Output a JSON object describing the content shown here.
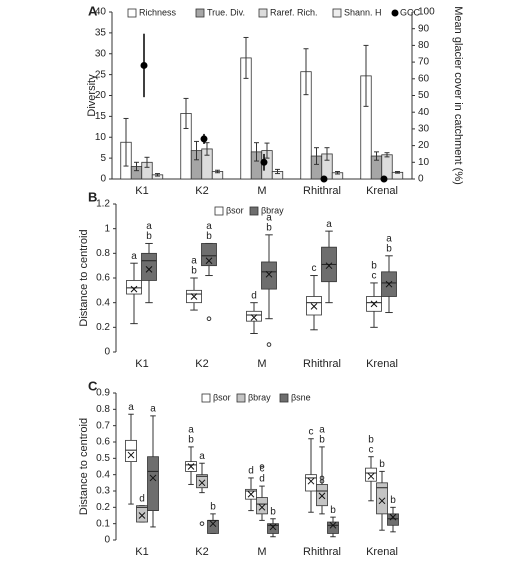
{
  "chart_data": [
    {
      "type": "bar",
      "panel": "A",
      "ylabel": "Diversity",
      "y2label": "Mean glacier cover in catchment (%)",
      "categories": [
        "K1",
        "K2",
        "M",
        "Rhithral",
        "Krenal"
      ],
      "ylim": [
        0,
        40
      ],
      "yticks": [
        0,
        5,
        10,
        15,
        20,
        25,
        30,
        35,
        40
      ],
      "y2lim": [
        0,
        100
      ],
      "y2ticks": [
        0,
        10,
        20,
        30,
        40,
        50,
        60,
        70,
        80,
        90,
        100
      ],
      "series": [
        {
          "name": "Richness",
          "color": "#ffffff",
          "values": [
            8.8,
            15.7,
            29,
            25.7,
            24.7
          ],
          "errors": [
            5.7,
            3.6,
            4.9,
            5.5,
            7.3
          ]
        },
        {
          "name": "True. Div.",
          "color": "#a6a6a6",
          "values": [
            3,
            6.8,
            6.5,
            5.5,
            5.5
          ],
          "errors": [
            1,
            2.2,
            2.2,
            2,
            1
          ]
        },
        {
          "name": "Raref. Rich.",
          "color": "#dcdcdc",
          "values": [
            4,
            7.2,
            6.8,
            6,
            5.8
          ],
          "errors": [
            1.2,
            1.5,
            1.8,
            1.5,
            0.5
          ]
        },
        {
          "name": "Shann. H",
          "color": "#eeeeee",
          "values": [
            1,
            1.8,
            1.8,
            1.5,
            1.6
          ],
          "errors": [
            0.3,
            0.3,
            0.5,
            0.3,
            0.2
          ]
        },
        {
          "name": "GCC",
          "color": "#000000",
          "axis": "y2",
          "values": [
            68,
            24,
            10,
            0,
            0
          ],
          "errors": [
            19,
            3,
            5,
            0,
            0
          ]
        }
      ]
    },
    {
      "type": "box",
      "panel": "B",
      "ylabel": "Distance to centroid",
      "categories": [
        "K1",
        "K2",
        "M",
        "Rhithral",
        "Krenal"
      ],
      "ylim": [
        0,
        1.2
      ],
      "yticks": [
        0,
        0.2,
        0.4,
        0.6,
        0.8,
        1,
        1.2
      ],
      "series": [
        {
          "name": "βsor",
          "color": "#ffffff",
          "boxes": [
            {
              "min": 0.23,
              "q1": 0.47,
              "median": 0.52,
              "q3": 0.58,
              "max": 0.72,
              "mean": 0.51,
              "outliers": [],
              "letters": [
                "a"
              ]
            },
            {
              "min": 0.34,
              "q1": 0.4,
              "median": 0.47,
              "q3": 0.5,
              "max": 0.6,
              "mean": 0.45,
              "outliers": [],
              "letters": [
                "a",
                "b"
              ]
            },
            {
              "min": 0.15,
              "q1": 0.25,
              "median": 0.3,
              "q3": 0.33,
              "max": 0.4,
              "mean": 0.28,
              "outliers": [],
              "letters": [
                "d"
              ]
            },
            {
              "min": 0.18,
              "q1": 0.3,
              "median": 0.4,
              "q3": 0.45,
              "max": 0.62,
              "mean": 0.37,
              "outliers": [],
              "letters": [
                "c"
              ]
            },
            {
              "min": 0.2,
              "q1": 0.33,
              "median": 0.4,
              "q3": 0.45,
              "max": 0.56,
              "mean": 0.39,
              "outliers": [],
              "letters": [
                "b",
                "c"
              ]
            }
          ]
        },
        {
          "name": "βbray",
          "color": "#6e6e6e",
          "boxes": [
            {
              "min": 0.4,
              "q1": 0.58,
              "median": 0.74,
              "q3": 0.8,
              "max": 0.88,
              "mean": 0.67,
              "outliers": [],
              "letters": [
                "a",
                "b"
              ]
            },
            {
              "min": 0.62,
              "q1": 0.7,
              "median": 0.78,
              "q3": 0.88,
              "max": 0.88,
              "mean": 0.74,
              "outliers": [
                0.27
              ],
              "letters": [
                "a",
                "b"
              ]
            },
            {
              "min": 0.27,
              "q1": 0.51,
              "median": 0.65,
              "q3": 0.73,
              "max": 0.95,
              "mean": 0.63,
              "outliers": [
                0.06
              ],
              "letters": [
                "a",
                "b"
              ]
            },
            {
              "min": 0.4,
              "q1": 0.57,
              "median": 0.71,
              "q3": 0.85,
              "max": 0.98,
              "mean": 0.7,
              "outliers": [],
              "letters": [
                "a"
              ]
            },
            {
              "min": 0.32,
              "q1": 0.45,
              "median": 0.56,
              "q3": 0.65,
              "max": 0.78,
              "mean": 0.55,
              "outliers": [],
              "letters": [
                "a",
                "b"
              ]
            }
          ]
        }
      ]
    },
    {
      "type": "box",
      "panel": "C",
      "ylabel": "Distance to centroid",
      "categories": [
        "K1",
        "K2",
        "M",
        "Rhithral",
        "Krenal"
      ],
      "ylim": [
        0,
        0.9
      ],
      "yticks": [
        0,
        0.1,
        0.2,
        0.3,
        0.4,
        0.5,
        0.6,
        0.7,
        0.8,
        0.9
      ],
      "series": [
        {
          "name": "βsor",
          "color": "#ffffff",
          "boxes": [
            {
              "min": 0.22,
              "q1": 0.48,
              "median": 0.55,
              "q3": 0.61,
              "max": 0.77,
              "mean": 0.52,
              "outliers": [],
              "letters": [
                "a"
              ]
            },
            {
              "min": 0.34,
              "q1": 0.42,
              "median": 0.46,
              "q3": 0.48,
              "max": 0.57,
              "mean": 0.45,
              "outliers": [],
              "letters": [
                "a",
                "b"
              ]
            },
            {
              "min": 0.18,
              "q1": 0.25,
              "median": 0.3,
              "q3": 0.31,
              "max": 0.38,
              "mean": 0.28,
              "outliers": [],
              "letters": [
                "d"
              ]
            },
            {
              "min": 0.17,
              "q1": 0.3,
              "median": 0.38,
              "q3": 0.4,
              "max": 0.62,
              "mean": 0.36,
              "outliers": [],
              "letters": [
                "c"
              ]
            },
            {
              "min": 0.24,
              "q1": 0.36,
              "median": 0.41,
              "q3": 0.44,
              "max": 0.51,
              "mean": 0.39,
              "outliers": [],
              "letters": [
                "b",
                "c"
              ]
            }
          ]
        },
        {
          "name": "βbray",
          "color": "#c4c4c4",
          "boxes": [
            {
              "min": 0.11,
              "q1": 0.11,
              "median": 0.2,
              "q3": 0.21,
              "max": 0.21,
              "mean": 0.15,
              "outliers": [],
              "letters": [
                "d"
              ]
            },
            {
              "min": 0.29,
              "q1": 0.32,
              "median": 0.39,
              "q3": 0.4,
              "max": 0.47,
              "mean": 0.35,
              "outliers": [
                0.1
              ],
              "letters": [
                "a"
              ]
            },
            {
              "min": 0.12,
              "q1": 0.16,
              "median": 0.22,
              "q3": 0.26,
              "max": 0.33,
              "mean": 0.2,
              "outliers": [
                0.45
              ],
              "letters": [
                "c",
                "d"
              ]
            },
            {
              "min": 0.16,
              "q1": 0.21,
              "median": 0.3,
              "q3": 0.34,
              "max": 0.57,
              "mean": 0.27,
              "outliers": [
                0.36,
                0.38
              ],
              "letters": [
                "a",
                "b"
              ]
            },
            {
              "min": 0.06,
              "q1": 0.16,
              "median": 0.32,
              "q3": 0.35,
              "max": 0.42,
              "mean": 0.24,
              "outliers": [],
              "letters": [
                "b"
              ]
            }
          ]
        },
        {
          "name": "βsne",
          "color": "#6e6e6e",
          "boxes": [
            {
              "min": 0.08,
              "q1": 0.18,
              "median": 0.42,
              "q3": 0.51,
              "max": 0.76,
              "mean": 0.38,
              "outliers": [],
              "letters": [
                "a"
              ]
            },
            {
              "min": 0.04,
              "q1": 0.04,
              "median": 0.12,
              "q3": 0.12,
              "max": 0.16,
              "mean": 0.1,
              "outliers": [],
              "letters": [
                "b"
              ]
            },
            {
              "min": 0.02,
              "q1": 0.04,
              "median": 0.09,
              "q3": 0.1,
              "max": 0.13,
              "mean": 0.08,
              "outliers": [],
              "letters": [
                "b"
              ]
            },
            {
              "min": 0.02,
              "q1": 0.04,
              "median": 0.09,
              "q3": 0.11,
              "max": 0.14,
              "mean": 0.09,
              "outliers": [],
              "letters": [
                "b"
              ]
            },
            {
              "min": 0.05,
              "q1": 0.09,
              "median": 0.13,
              "q3": 0.16,
              "max": 0.2,
              "mean": 0.14,
              "outliers": [],
              "letters": [
                "b"
              ]
            }
          ]
        }
      ]
    }
  ]
}
